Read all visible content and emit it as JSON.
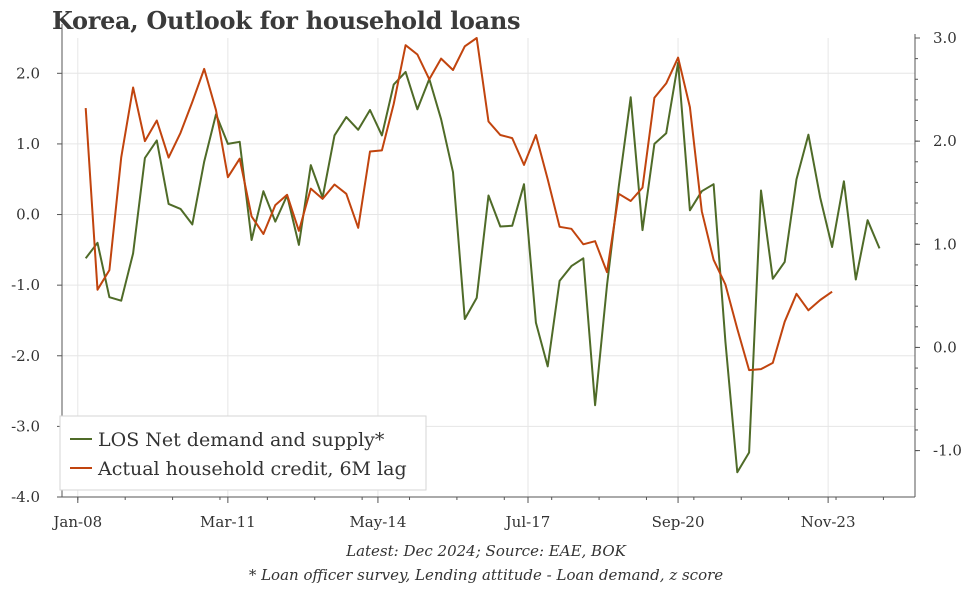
{
  "title": "Korea, Outlook for household loans",
  "footer": {
    "source": "Latest: Dec 2024; Source: EAE, BOK",
    "note": "* Loan officer survey, Lending attitude - Loan demand, z score"
  },
  "colors": {
    "los": "#4f6b28",
    "credit": "#c1440e",
    "grid": "#e6e6e6",
    "axis": "#555555"
  },
  "chart_data": {
    "type": "line",
    "title": "Korea, Outlook for household loans",
    "legend": {
      "placement": "bottom-left",
      "entries": [
        "LOS Net demand and supply*",
        "Actual household credit, 6M lag"
      ]
    },
    "grid": true,
    "x_ticks": [
      "Jan-08",
      "Mar-11",
      "May-14",
      "Jul-17",
      "Sep-20",
      "Nov-23"
    ],
    "x_tick_dates": [
      "2008-01",
      "2011-03",
      "2014-05",
      "2017-07",
      "2020-09",
      "2023-11"
    ],
    "x_range": [
      "2007-09",
      "2025-09"
    ],
    "y_left": {
      "range": [
        -4.0,
        2.5
      ],
      "ticks": [
        "2.0",
        "1.0",
        "0.0",
        "-1.0",
        "-2.0",
        "-3.0",
        "-4.0"
      ],
      "tick_values": [
        2,
        1,
        0,
        -1,
        -2,
        -3,
        -4
      ]
    },
    "y_right": {
      "range": [
        -1.45,
        3.0
      ],
      "ticks": [
        "3.0",
        "2.0",
        "1.0",
        "0.0",
        "-1.0"
      ],
      "tick_values": [
        3,
        2,
        1,
        0,
        -1
      ]
    },
    "series": [
      {
        "name": "LOS Net demand and supply*",
        "axis": "left",
        "color": "#4f6b28",
        "x": [
          "2008-03",
          "2008-06",
          "2008-09",
          "2008-12",
          "2009-03",
          "2009-06",
          "2009-09",
          "2009-12",
          "2010-03",
          "2010-06",
          "2010-09",
          "2010-12",
          "2011-03",
          "2011-06",
          "2011-09",
          "2011-12",
          "2012-03",
          "2012-06",
          "2012-09",
          "2012-12",
          "2013-03",
          "2013-06",
          "2013-09",
          "2013-12",
          "2014-03",
          "2014-06",
          "2014-09",
          "2014-12",
          "2015-03",
          "2015-06",
          "2015-09",
          "2015-12",
          "2016-03",
          "2016-06",
          "2016-09",
          "2016-12",
          "2017-03",
          "2017-06",
          "2017-09",
          "2017-12",
          "2018-03",
          "2018-06",
          "2018-09",
          "2018-12",
          "2019-03",
          "2019-06",
          "2019-09",
          "2019-12",
          "2020-03",
          "2020-06",
          "2020-09",
          "2020-12",
          "2021-03",
          "2021-06",
          "2021-09",
          "2021-12",
          "2022-03",
          "2022-06",
          "2022-09",
          "2022-12",
          "2023-03",
          "2023-06",
          "2023-09",
          "2023-12",
          "2024-03",
          "2024-06",
          "2024-09",
          "2024-12"
        ],
        "values": [
          -0.62,
          -0.4,
          -1.17,
          -1.22,
          -0.55,
          0.8,
          1.05,
          0.15,
          0.08,
          -0.14,
          0.75,
          1.42,
          1.0,
          1.03,
          -0.36,
          0.33,
          -0.1,
          0.27,
          -0.43,
          0.7,
          0.24,
          1.12,
          1.38,
          1.2,
          1.48,
          1.12,
          1.84,
          2.02,
          1.49,
          1.92,
          1.35,
          0.6,
          -1.48,
          -1.18,
          0.27,
          -0.17,
          -0.16,
          0.43,
          -1.53,
          -2.15,
          -0.94,
          -0.73,
          -0.62,
          -2.7,
          -1.0,
          0.4,
          1.66,
          -0.22,
          1.0,
          1.15,
          2.15,
          0.06,
          0.33,
          0.43,
          -1.8,
          -3.65,
          -3.37,
          0.34,
          -0.91,
          -0.67,
          0.5,
          1.13,
          0.24,
          -0.46,
          0.47,
          -0.92,
          -0.08,
          -0.48
        ]
      },
      {
        "name": "Actual household credit, 6M lag",
        "axis": "right",
        "color": "#c1440e",
        "x": [
          "2008-03",
          "2008-06",
          "2008-09",
          "2008-12",
          "2009-03",
          "2009-06",
          "2009-09",
          "2009-12",
          "2010-03",
          "2010-06",
          "2010-09",
          "2010-12",
          "2011-03",
          "2011-06",
          "2011-09",
          "2011-12",
          "2012-03",
          "2012-06",
          "2012-09",
          "2012-12",
          "2013-03",
          "2013-06",
          "2013-09",
          "2013-12",
          "2014-03",
          "2014-06",
          "2014-09",
          "2014-12",
          "2015-03",
          "2015-06",
          "2015-09",
          "2015-12",
          "2016-03",
          "2016-06",
          "2016-09",
          "2016-12",
          "2017-03",
          "2017-06",
          "2017-09",
          "2017-12",
          "2018-03",
          "2018-06",
          "2018-09",
          "2018-12",
          "2019-03",
          "2019-06",
          "2019-09",
          "2019-12",
          "2020-03",
          "2020-06",
          "2020-09",
          "2020-12",
          "2021-03",
          "2021-06",
          "2021-09",
          "2021-12",
          "2022-03",
          "2022-06",
          "2022-09",
          "2022-12",
          "2023-03",
          "2023-06",
          "2023-09",
          "2023-12"
        ],
        "values": [
          2.32,
          0.56,
          0.75,
          1.84,
          2.52,
          2.0,
          2.2,
          1.84,
          2.08,
          2.38,
          2.7,
          2.3,
          1.65,
          1.83,
          1.27,
          1.1,
          1.38,
          1.48,
          1.13,
          1.54,
          1.44,
          1.58,
          1.49,
          1.16,
          1.9,
          1.91,
          2.36,
          2.93,
          2.84,
          2.6,
          2.8,
          2.69,
          2.92,
          3.0,
          2.19,
          2.06,
          2.03,
          1.77,
          2.06,
          1.63,
          1.17,
          1.15,
          1.0,
          1.03,
          0.73,
          1.49,
          1.42,
          1.55,
          2.42,
          2.56,
          2.81,
          2.33,
          1.32,
          0.85,
          0.61,
          0.18,
          -0.22,
          -0.21,
          -0.15,
          0.25,
          0.52,
          0.36,
          0.46,
          0.54
        ]
      }
    ]
  }
}
